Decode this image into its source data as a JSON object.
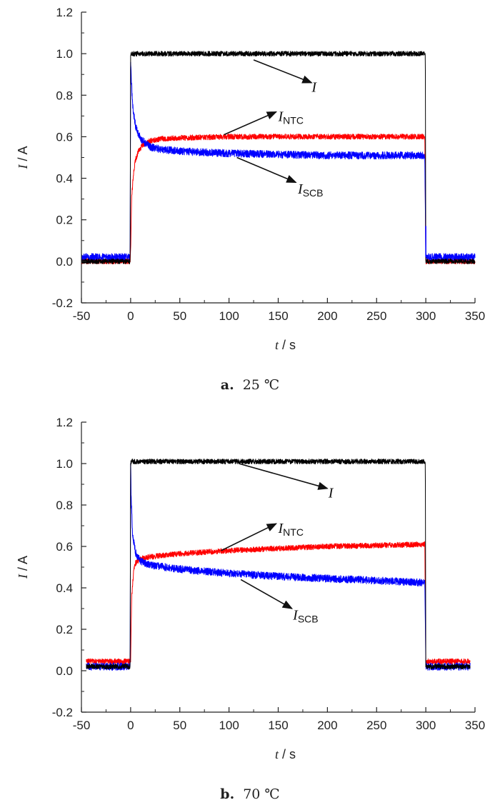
{
  "chart_data": [
    {
      "type": "line",
      "caption": {
        "letter": "a.",
        "text": "25 ℃"
      },
      "xlabel": {
        "var": "t",
        "unit": " / s"
      },
      "ylabel": {
        "var": "I",
        "unit": " / A"
      },
      "xlim": [
        -50,
        350
      ],
      "ylim": [
        -0.2,
        1.2
      ],
      "xticks": [
        "-50",
        "0",
        "50",
        "100",
        "150",
        "200",
        "250",
        "300",
        "350"
      ],
      "yticks": [
        "-0.2",
        "0.0",
        "0.2",
        "0.4",
        "0.6",
        "0.8",
        "1.0",
        "1.2"
      ],
      "grid": false,
      "colors": {
        "I": "#000000",
        "I_NTC": "#ff0000",
        "I_SCB": "#0000ff"
      },
      "series": [
        {
          "key": "I",
          "x": [
            -50,
            -0.5,
            0,
            1,
            5,
            50,
            100,
            150,
            200,
            250,
            299,
            299.5,
            300,
            350
          ],
          "y": [
            0,
            0,
            0.99,
            1.0,
            1.0,
            1.0,
            1.0,
            1.0,
            1.0,
            1.0,
            1.0,
            1.0,
            0,
            0
          ],
          "noise": 0.012
        },
        {
          "key": "I_NTC",
          "x": [
            -50,
            -0.5,
            0,
            1,
            3,
            5,
            8,
            12,
            20,
            30,
            50,
            100,
            150,
            200,
            250,
            299,
            300,
            350
          ],
          "y": [
            0,
            0,
            0.05,
            0.3,
            0.43,
            0.49,
            0.53,
            0.56,
            0.58,
            0.59,
            0.595,
            0.6,
            0.6,
            0.6,
            0.6,
            0.6,
            0,
            0
          ],
          "noise": 0.013
        },
        {
          "key": "I_SCB",
          "x": [
            -50,
            -0.5,
            0,
            0.5,
            2,
            5,
            10,
            20,
            30,
            50,
            100,
            150,
            200,
            250,
            299,
            300,
            350
          ],
          "y": [
            0.02,
            0.02,
            0.95,
            0.9,
            0.75,
            0.65,
            0.59,
            0.55,
            0.54,
            0.53,
            0.52,
            0.515,
            0.51,
            0.51,
            0.51,
            0.02,
            0.02
          ],
          "noise": 0.018
        }
      ],
      "spikes": [
        {
          "series": "I_SCB",
          "x": 300,
          "y": 0.17
        }
      ],
      "annotations": [
        {
          "label": "I",
          "sub": "",
          "text_x": 184,
          "text_y": 0.84,
          "arrow_from": [
            184,
            0.86
          ],
          "arrow_to": [
            125,
            0.97
          ]
        },
        {
          "label": "I",
          "sub": "NTC",
          "text_x": 150,
          "text_y": 0.7,
          "arrow_from": [
            148,
            0.72
          ],
          "arrow_to": [
            95,
            0.61
          ]
        },
        {
          "label": "I",
          "sub": "SCB",
          "text_x": 170,
          "text_y": 0.35,
          "arrow_from": [
            168,
            0.38
          ],
          "arrow_to": [
            108,
            0.5
          ]
        }
      ]
    },
    {
      "type": "line",
      "caption": {
        "letter": "b.",
        "text": "70 ℃"
      },
      "xlabel": {
        "var": "t",
        "unit": " / s"
      },
      "ylabel": {
        "var": "I",
        "unit": " / A"
      },
      "xlim": [
        -50,
        350
      ],
      "ylim": [
        -0.2,
        1.2
      ],
      "xticks": [
        "-50",
        "0",
        "50",
        "100",
        "150",
        "200",
        "250",
        "300",
        "350"
      ],
      "yticks": [
        "-0.2",
        "0.0",
        "0.2",
        "0.4",
        "0.6",
        "0.8",
        "1.0",
        "1.2"
      ],
      "grid": false,
      "colors": {
        "I": "#000000",
        "I_NTC": "#ff0000",
        "I_SCB": "#0000ff"
      },
      "series": [
        {
          "key": "I",
          "x": [
            -45,
            -0.5,
            0,
            1,
            5,
            50,
            100,
            150,
            200,
            250,
            299,
            299.5,
            300,
            345
          ],
          "y": [
            0.02,
            0.02,
            1.0,
            1.01,
            1.01,
            1.01,
            1.01,
            1.01,
            1.01,
            1.01,
            1.01,
            1.01,
            0.02,
            0.02
          ],
          "noise": 0.012
        },
        {
          "key": "I_NTC",
          "x": [
            -45,
            -0.5,
            0,
            1,
            3,
            5,
            10,
            20,
            50,
            100,
            150,
            200,
            250,
            299,
            300,
            345
          ],
          "y": [
            0.045,
            0.045,
            0.05,
            0.35,
            0.48,
            0.52,
            0.54,
            0.55,
            0.565,
            0.58,
            0.59,
            0.6,
            0.605,
            0.61,
            0.045,
            0.045
          ],
          "noise": 0.013
        },
        {
          "key": "I_SCB",
          "x": [
            -45,
            -0.5,
            0,
            0.5,
            2,
            5,
            10,
            20,
            50,
            100,
            150,
            200,
            250,
            299,
            300,
            345
          ],
          "y": [
            0.02,
            0.02,
            1.0,
            0.85,
            0.66,
            0.57,
            0.53,
            0.51,
            0.49,
            0.47,
            0.455,
            0.445,
            0.435,
            0.425,
            0.02,
            0.02
          ],
          "noise": 0.018
        }
      ],
      "spikes": [],
      "annotations": [
        {
          "label": "I",
          "sub": "",
          "text_x": 201,
          "text_y": 0.86,
          "arrow_from": [
            200,
            0.88
          ],
          "arrow_to": [
            110,
            1.0
          ]
        },
        {
          "label": "I",
          "sub": "NTC",
          "text_x": 150,
          "text_y": 0.69,
          "arrow_from": [
            148,
            0.71
          ],
          "arrow_to": [
            92,
            0.58
          ]
        },
        {
          "label": "I",
          "sub": "SCB",
          "text_x": 165,
          "text_y": 0.27,
          "arrow_from": [
            164,
            0.3
          ],
          "arrow_to": [
            112,
            0.44
          ]
        }
      ]
    }
  ]
}
